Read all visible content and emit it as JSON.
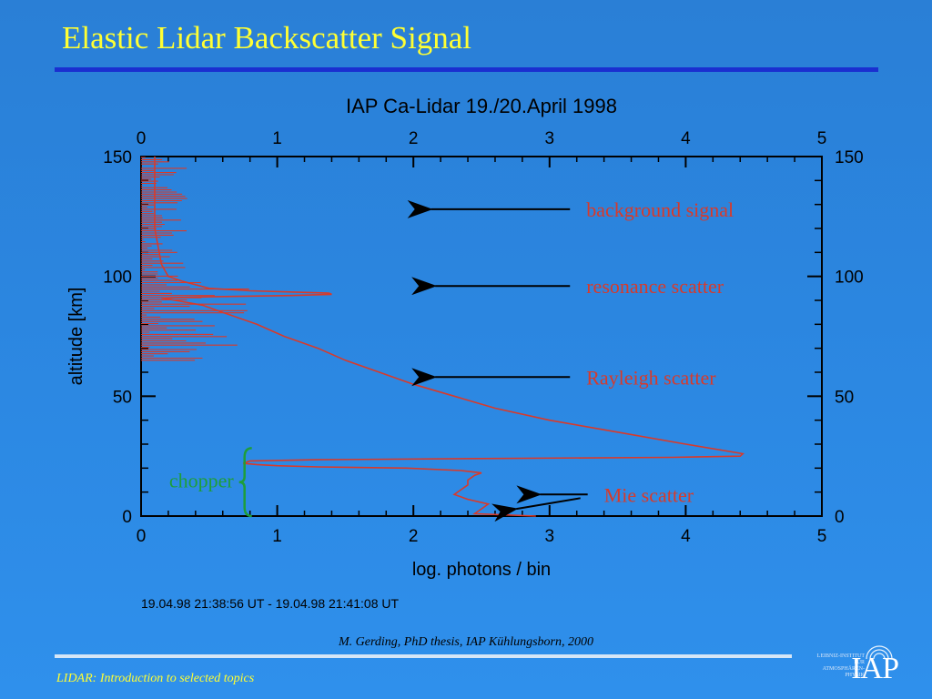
{
  "slide": {
    "title": "Elastic Lidar Backscatter Signal",
    "citation": "M. Gerding, PhD thesis, IAP Kühlungsborn, 2000",
    "footer": "LIDAR: Introduction to selected topics",
    "logo_text": "IAP",
    "logo_small_lines": [
      "LEIBNIZ-INSTITUT",
      "FÜR",
      "ATMOSPHÄREN-",
      "PHYSIK"
    ],
    "colors": {
      "title": "#ffff33",
      "rule_top": "#1a2fd0",
      "rule_bottom": "#d6e6f6",
      "signal": "#d83a2a",
      "chopper": "#1e9e3a",
      "label": "#d83a2a"
    }
  },
  "chart_data": {
    "type": "line",
    "title": "IAP Ca-Lidar  19./20.April 1998",
    "xlabel": "log. photons / bin",
    "ylabel": "altitude [km]",
    "xlim": [
      0,
      5
    ],
    "ylim": [
      0,
      150
    ],
    "x_ticks": [
      "0",
      "1",
      "2",
      "3",
      "4",
      "5"
    ],
    "y_ticks": [
      "0",
      "50",
      "100",
      "150"
    ],
    "timestamp": "19.04.98 21:38:56 UT - 19.04.98 21:41:08 UT",
    "series": [
      {
        "x": [
          2.9,
          2.45,
          2.5,
          2.55,
          2.4,
          2.3,
          2.35,
          2.4,
          2.4,
          2.45,
          2.5,
          2.35,
          1.95,
          1.3,
          1.0,
          0.85,
          0.75,
          0.8,
          1.3,
          2.5,
          3.9,
          4.4,
          4.42,
          4.0,
          3.5,
          3.0,
          2.6,
          2.3,
          2.0,
          1.75,
          1.5,
          1.3,
          1.05,
          0.85,
          0.6,
          0.45,
          0.35,
          0.25,
          0.2,
          0.15,
          0.5,
          1.1,
          1.4,
          1.38,
          1.1,
          0.8,
          0.5,
          0.3,
          0.2,
          0.15,
          0.1,
          0.1
        ],
        "y": [
          0,
          1,
          3,
          5,
          7,
          9,
          11,
          13,
          15,
          17,
          18,
          19,
          20,
          20.5,
          21,
          21.5,
          22,
          23,
          23.5,
          24,
          24.5,
          25,
          26,
          30,
          35,
          40,
          45,
          50,
          55,
          60,
          65,
          70,
          75,
          80,
          85,
          88,
          89,
          90,
          90.5,
          91,
          91.5,
          92,
          92.5,
          93,
          93.5,
          94,
          95,
          98,
          100,
          105,
          120,
          150
        ]
      }
    ],
    "noise_region": {
      "y_from": 65,
      "y_to": 150,
      "x_min": 0,
      "x_max": 0.35
    },
    "annotations": [
      {
        "text": "background signal",
        "y": 128,
        "arrow_from_x": 3.15,
        "arrow_to_x": 2.05
      },
      {
        "text": "resonance scatter",
        "y": 96,
        "arrow_from_x": 3.15,
        "arrow_to_x": 2.08
      },
      {
        "text": "Rayleigh scatter",
        "y": 58,
        "arrow_from_x": 3.15,
        "arrow_to_x": 2.08
      },
      {
        "text": "Mie scatter",
        "y": 9,
        "arrow_from_x": 3.28,
        "arrow_to_x": 2.85
      }
    ],
    "bracket": {
      "text": "chopper",
      "y_from": 0,
      "y_to": 23,
      "x": 0.8
    }
  }
}
